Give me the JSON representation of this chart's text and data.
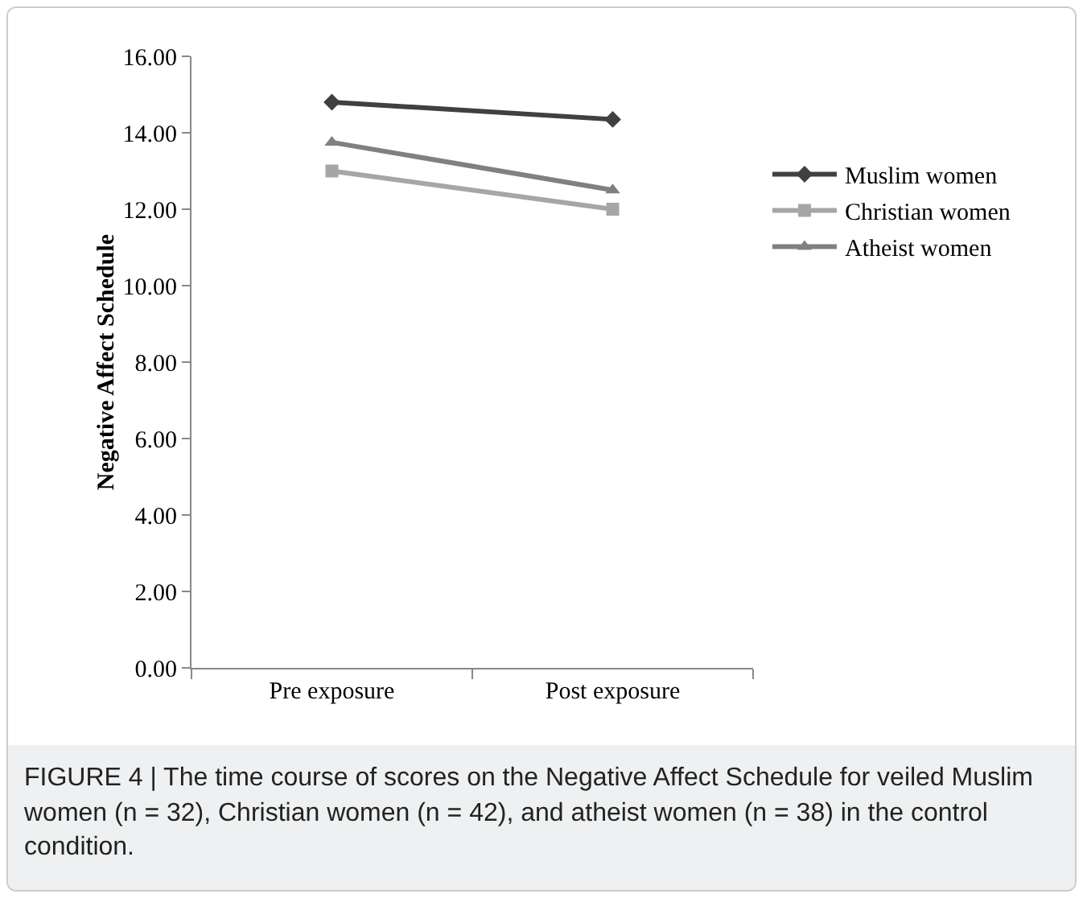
{
  "chart_data": {
    "type": "line",
    "ylabel": "Negative Affect Schedule",
    "categories": [
      "Pre exposure",
      "Post exposure"
    ],
    "series": [
      {
        "name": "Muslim women",
        "color": "#404040",
        "marker": "diamond",
        "values": [
          14.8,
          14.35
        ]
      },
      {
        "name": "Christian women",
        "color": "#a6a6a6",
        "marker": "square",
        "values": [
          13.0,
          12.0
        ]
      },
      {
        "name": "Atheist women",
        "color": "#808080",
        "marker": "triangle",
        "values": [
          13.75,
          12.5
        ]
      }
    ],
    "ylim": [
      0,
      16
    ],
    "yticks": [
      {
        "value": 0,
        "label": "0.00"
      },
      {
        "value": 2,
        "label": "2.00"
      },
      {
        "value": 4,
        "label": "4.00"
      },
      {
        "value": 6,
        "label": "6.00"
      },
      {
        "value": 8,
        "label": "8.00"
      },
      {
        "value": 10,
        "label": "10.00"
      },
      {
        "value": 12,
        "label": "12.00"
      },
      {
        "value": 14,
        "label": "14.00"
      },
      {
        "value": 16,
        "label": "16.00"
      }
    ],
    "grid": false,
    "legend": "right",
    "line_style": "solid",
    "annotations": [
      "FIGURE 4 | The time course of scores on the Negative Affect Schedule for veiled Muslim women (n = 32), Christian women (n = 42), and atheist women (n = 38) in the control condition."
    ]
  }
}
